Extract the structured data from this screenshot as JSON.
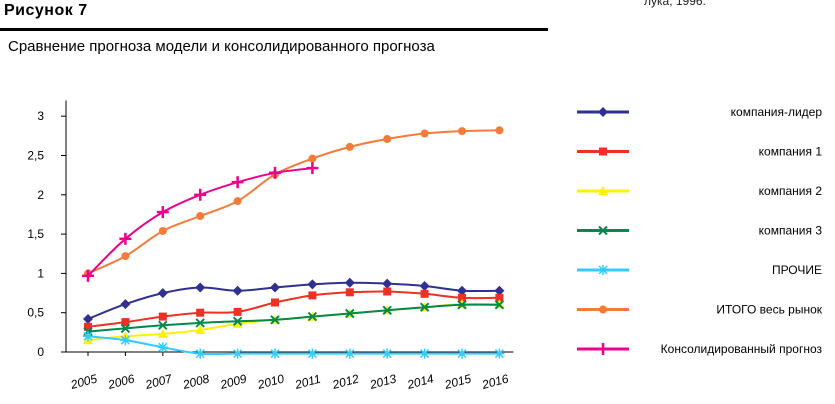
{
  "figure_label": "Рисунок 7",
  "corner_text": "лука, 1996.",
  "chart_data": {
    "type": "line",
    "title": "Сравнение прогноза модели и консолидированного прогноза",
    "xlabel": "",
    "ylabel": "",
    "x": [
      "2005",
      "2006",
      "2007",
      "2008",
      "2009",
      "2010",
      "2011",
      "2012",
      "2013",
      "2014",
      "2015",
      "2016"
    ],
    "yticks": [
      "0",
      "0,5",
      "1",
      "1,5",
      "2",
      "2,5",
      "3"
    ],
    "ylim": [
      0,
      3.2
    ],
    "grid": false,
    "legend_position": "right",
    "series": [
      {
        "name": "компания-лидер",
        "color": "#2e3192",
        "marker": "diamond",
        "values": [
          0.42,
          0.61,
          0.75,
          0.82,
          0.78,
          0.82,
          0.86,
          0.88,
          0.87,
          0.84,
          0.78,
          0.78
        ]
      },
      {
        "name": "компания 1",
        "color": "#ee3124",
        "marker": "square",
        "values": [
          0.32,
          0.38,
          0.45,
          0.5,
          0.51,
          0.63,
          0.72,
          0.76,
          0.77,
          0.74,
          0.69,
          0.69
        ]
      },
      {
        "name": "компания 2",
        "color": "#fff200",
        "marker": "triangle",
        "values": [
          0.15,
          0.2,
          0.23,
          0.28,
          0.36,
          0.41,
          0.45,
          0.49,
          0.53,
          0.57,
          0.61,
          0.61
        ]
      },
      {
        "name": "компания 3",
        "color": "#00894d",
        "marker": "x",
        "values": [
          0.26,
          0.3,
          0.34,
          0.37,
          0.39,
          0.41,
          0.45,
          0.49,
          0.53,
          0.57,
          0.6,
          0.6
        ]
      },
      {
        "name": "ПРОЧИЕ",
        "color": "#33ccff",
        "marker": "star",
        "values": [
          0.2,
          0.15,
          0.06,
          -0.02,
          -0.02,
          -0.02,
          -0.02,
          -0.02,
          -0.02,
          -0.02,
          -0.02,
          -0.02
        ]
      },
      {
        "name": "ИТОГО весь рынок",
        "color": "#f47b3a",
        "marker": "circle",
        "values": [
          1.0,
          1.22,
          1.54,
          1.73,
          1.92,
          2.26,
          2.46,
          2.61,
          2.71,
          2.78,
          2.81,
          2.82
        ]
      },
      {
        "name": "Консолидированный прогноз",
        "color": "#ec008c",
        "marker": "plus",
        "values": [
          0.97,
          1.44,
          1.78,
          2.0,
          2.16,
          2.28,
          2.34,
          null,
          null,
          null,
          null,
          null
        ]
      }
    ]
  }
}
